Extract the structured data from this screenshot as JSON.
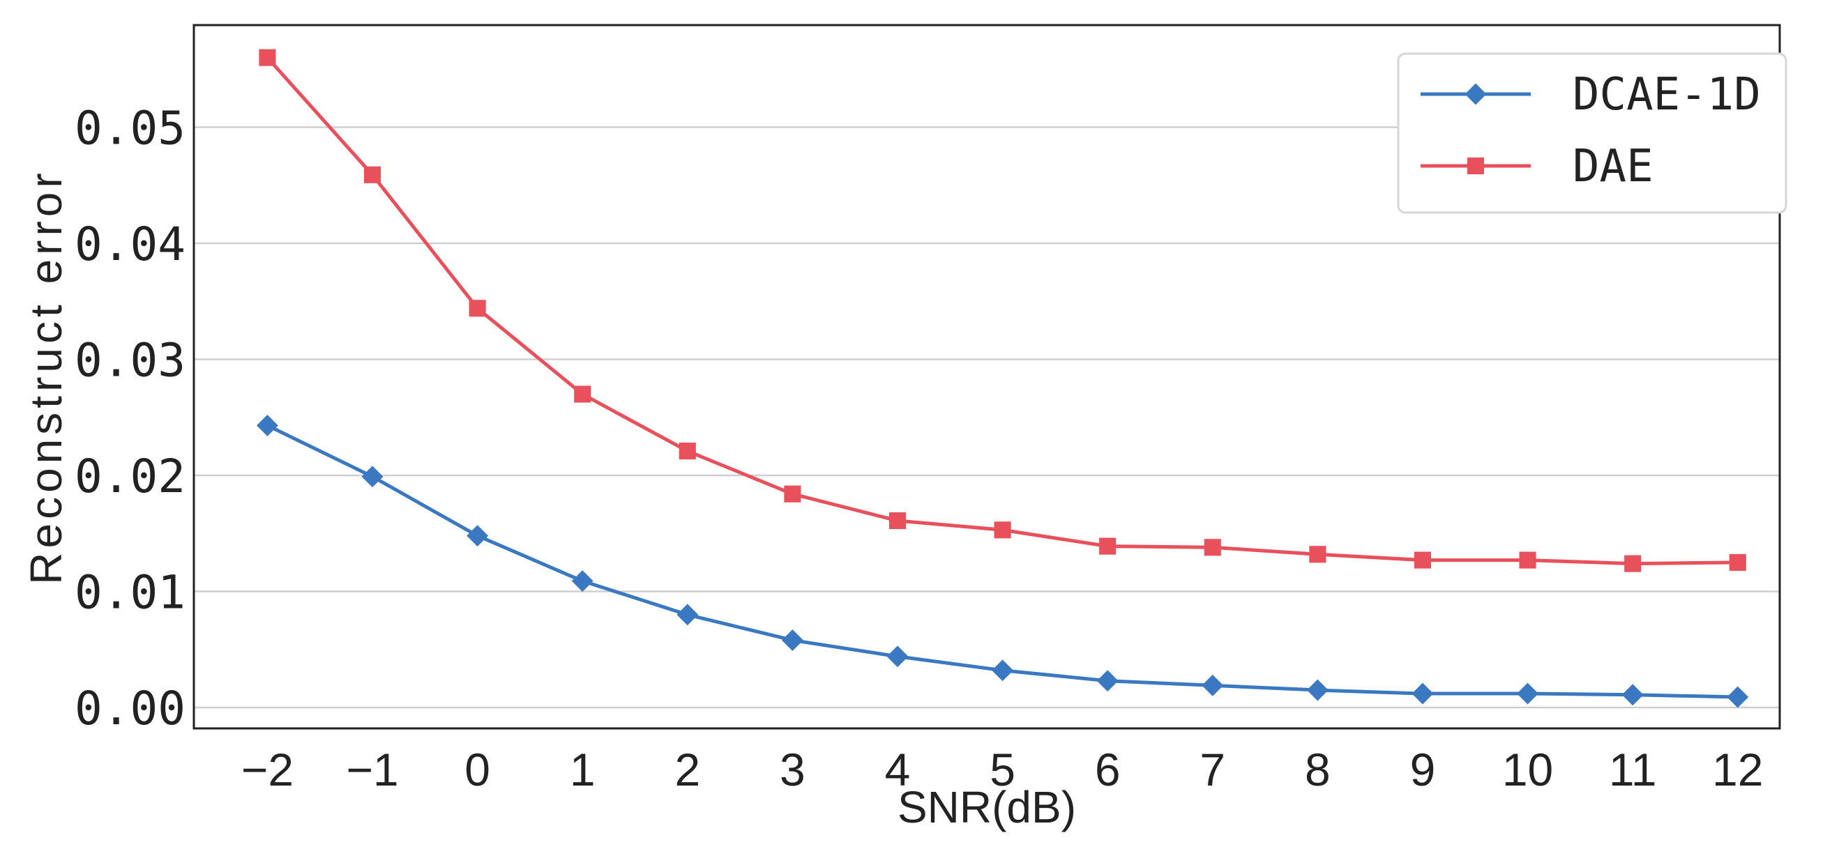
{
  "chart_data": {
    "type": "line",
    "title": "",
    "xlabel": "SNR(dB)",
    "ylabel": "Reconstruct error",
    "x": [
      -2,
      -1,
      0,
      1,
      2,
      3,
      4,
      5,
      6,
      7,
      8,
      9,
      10,
      11,
      12
    ],
    "x_tick_labels": [
      "−2",
      "−1",
      "0",
      "1",
      "2",
      "3",
      "4",
      "5",
      "6",
      "7",
      "8",
      "9",
      "10",
      "11",
      "12"
    ],
    "y_ticks": [
      0.0,
      0.01,
      0.02,
      0.03,
      0.04,
      0.05
    ],
    "y_tick_labels": [
      "0.00",
      "0.01",
      "0.02",
      "0.03",
      "0.04",
      "0.05"
    ],
    "xlim": [
      -2.7,
      12.4
    ],
    "ylim": [
      -0.0018,
      0.0588
    ],
    "grid": "horizontal",
    "legend_position": "top-right",
    "series": [
      {
        "name": "DCAE-1D",
        "color": "#3a78c2",
        "marker": "diamond",
        "values": [
          0.0243,
          0.0199,
          0.0148,
          0.0109,
          0.008,
          0.0058,
          0.0044,
          0.0032,
          0.0023,
          0.0019,
          0.0015,
          0.0012,
          0.0012,
          0.0011,
          0.0009
        ]
      },
      {
        "name": "DAE",
        "color": "#e8505b",
        "marker": "square",
        "values": [
          0.056,
          0.0459,
          0.0344,
          0.027,
          0.0221,
          0.0184,
          0.0161,
          0.0153,
          0.0139,
          0.0138,
          0.0132,
          0.0127,
          0.0127,
          0.0124,
          0.0125
        ]
      }
    ]
  }
}
